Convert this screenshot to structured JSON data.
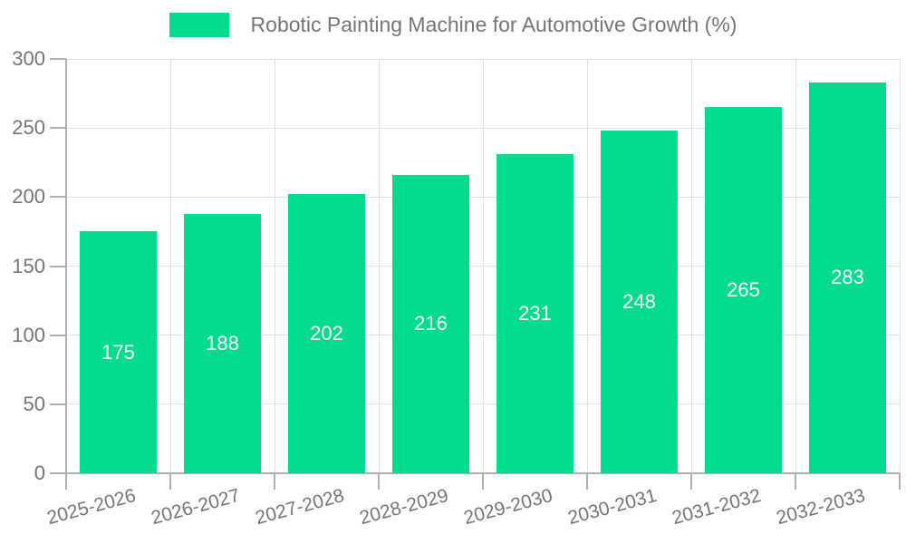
{
  "chart_data": {
    "type": "bar",
    "title": "Robotic Painting Machine for Automotive Growth (%)",
    "legend_entries": [
      "Robotic Painting Machine for Automotive Growth (%)"
    ],
    "legend_position": "top",
    "categories": [
      "2025-2026",
      "2026-2027",
      "2027-2028",
      "2028-2029",
      "2029-2030",
      "2030-2031",
      "2031-2032",
      "2032-2033"
    ],
    "values": [
      175,
      188,
      202,
      216,
      231,
      248,
      265,
      283
    ],
    "xlabel": "",
    "ylabel": "",
    "ylim": [
      0,
      300
    ],
    "yticks": [
      0,
      50,
      100,
      150,
      200,
      250,
      300
    ],
    "grid": true,
    "xtick_rotation_deg": 15,
    "colors": {
      "bar": "#00DB8E",
      "bar_label": "#ffffff",
      "axis": "#b0b0b0",
      "grid": "#e0e0e0",
      "text": "#757575",
      "background": "#ffffff"
    }
  }
}
